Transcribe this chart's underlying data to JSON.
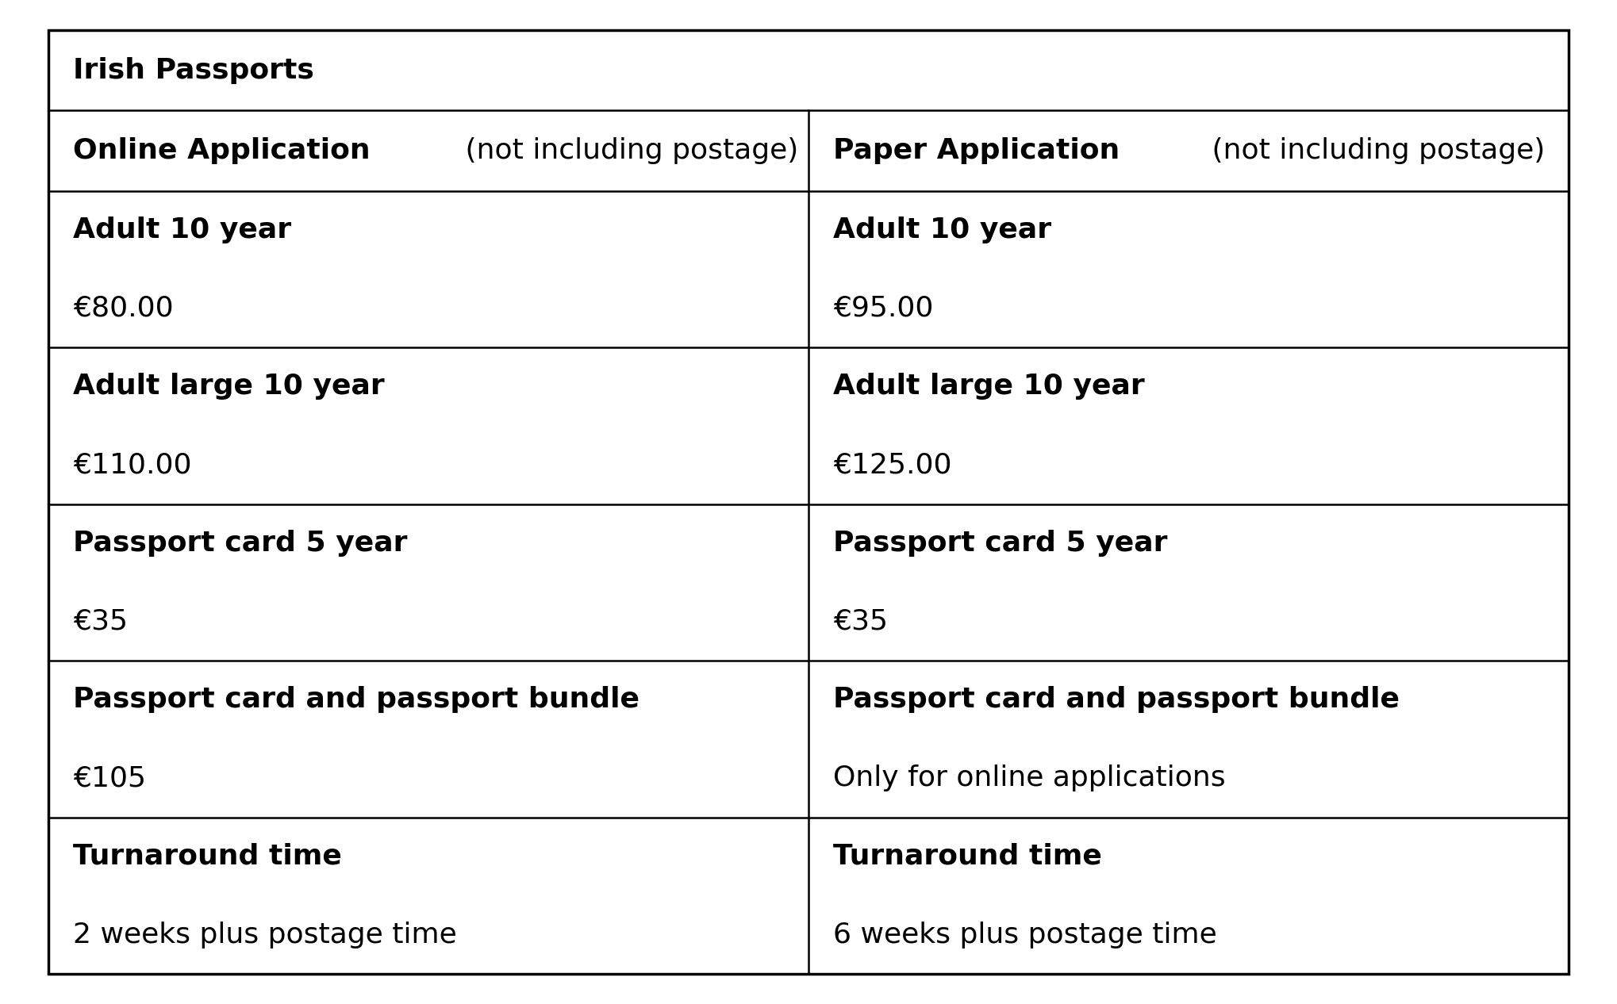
{
  "title": "Irish Passports",
  "col1_header_bold": "Online Application",
  "col1_header_normal": " (not including postage)",
  "col2_header_bold": "Paper Application",
  "col2_header_normal": " (not including postage)",
  "col1_rows": [
    {
      "bold": "Adult 10 year",
      "normal": ""
    },
    {
      "bold": "",
      "normal": "€80.00"
    },
    {
      "bold": "Adult large 10 year",
      "normal": ""
    },
    {
      "bold": "",
      "normal": "€110.00"
    },
    {
      "bold": "Passport card 5 year",
      "normal": ""
    },
    {
      "bold": "",
      "normal": "€35"
    },
    {
      "bold": "Passport card and passport bundle",
      "normal": ""
    },
    {
      "bold": "",
      "normal": "€105"
    },
    {
      "bold": "Turnaround time",
      "normal": ""
    },
    {
      "bold": "",
      "normal": "2 weeks plus postage time"
    }
  ],
  "col2_rows": [
    {
      "bold": "Adult 10 year",
      "normal": ""
    },
    {
      "bold": "",
      "normal": "€95.00"
    },
    {
      "bold": "Adult large 10 year",
      "normal": ""
    },
    {
      "bold": "",
      "normal": "€125.00"
    },
    {
      "bold": "Passport card 5 year",
      "normal": ""
    },
    {
      "bold": "",
      "normal": "€35"
    },
    {
      "bold": "Passport card and passport bundle",
      "normal": ""
    },
    {
      "bold": "",
      "normal": "Only for online applications"
    },
    {
      "bold": "Turnaround time",
      "normal": ""
    },
    {
      "bold": "",
      "normal": "6 weeks plus postage time"
    }
  ],
  "background_color": "#ffffff",
  "border_color": "#000000",
  "text_color": "#000000",
  "font_size": 26,
  "title_font_size": 26,
  "fig_width": 20.38,
  "fig_height": 12.66,
  "dpi": 100
}
